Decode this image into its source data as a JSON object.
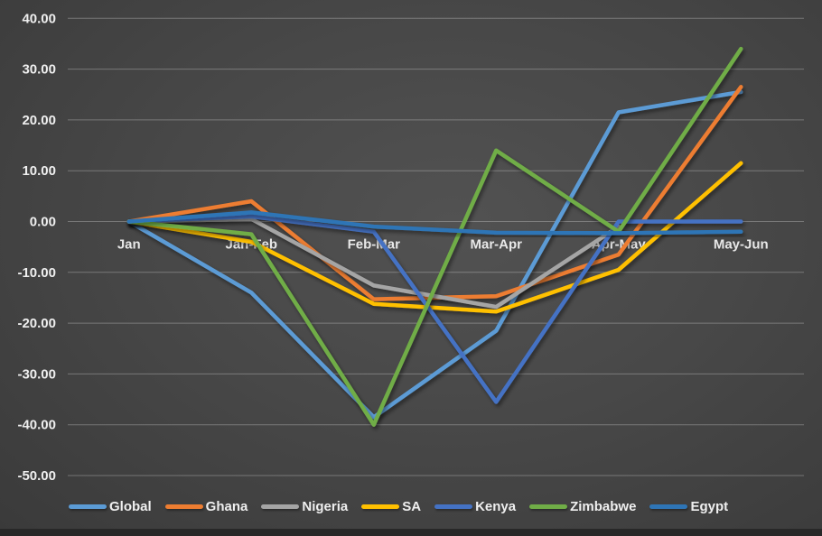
{
  "chart_data": {
    "type": "line",
    "categories": [
      "Jan",
      "Jan-Feb",
      "Feb-Mar",
      "Mar-Apr",
      "Apr-May",
      "May-Jun"
    ],
    "series": [
      {
        "name": "Global",
        "color": "#5B9BD5",
        "values": [
          0,
          -14,
          -38.5,
          -21.5,
          21.5,
          25.5
        ]
      },
      {
        "name": "Ghana",
        "color": "#ED7D31",
        "values": [
          0,
          4,
          -15.3,
          -14.7,
          -6.5,
          26.5
        ]
      },
      {
        "name": "Nigeria",
        "color": "#A5A5A5",
        "values": [
          0,
          0.5,
          -12.6,
          -16.8,
          -1,
          null
        ]
      },
      {
        "name": "SA",
        "color": "#FFC000",
        "values": [
          0,
          -4,
          -16.2,
          -17.7,
          -9.5,
          11.5
        ]
      },
      {
        "name": "Kenya",
        "color": "#4472C4",
        "values": [
          0,
          1,
          -2,
          -35.5,
          0,
          0
        ]
      },
      {
        "name": "Zimbabwe",
        "color": "#70AD47",
        "values": [
          0,
          -2.5,
          -40,
          14,
          -2,
          34
        ]
      },
      {
        "name": "Egypt",
        "color": "#2E75B6",
        "values": [
          0,
          1.8,
          -1,
          -2.2,
          -2.3,
          -2
        ]
      }
    ],
    "title": "",
    "xlabel": "",
    "ylabel": "",
    "ylim": [
      -50,
      40
    ],
    "y_tick_step": 10,
    "y_tick_format_decimals": 2,
    "grid": "horizontal",
    "legend_position": "bottom",
    "background": "dark-gray-gradient",
    "colors": {
      "grid": "rgba(255,255,255,0.28)",
      "tick_text": "#efefef",
      "legend_text": "#efefef"
    }
  }
}
